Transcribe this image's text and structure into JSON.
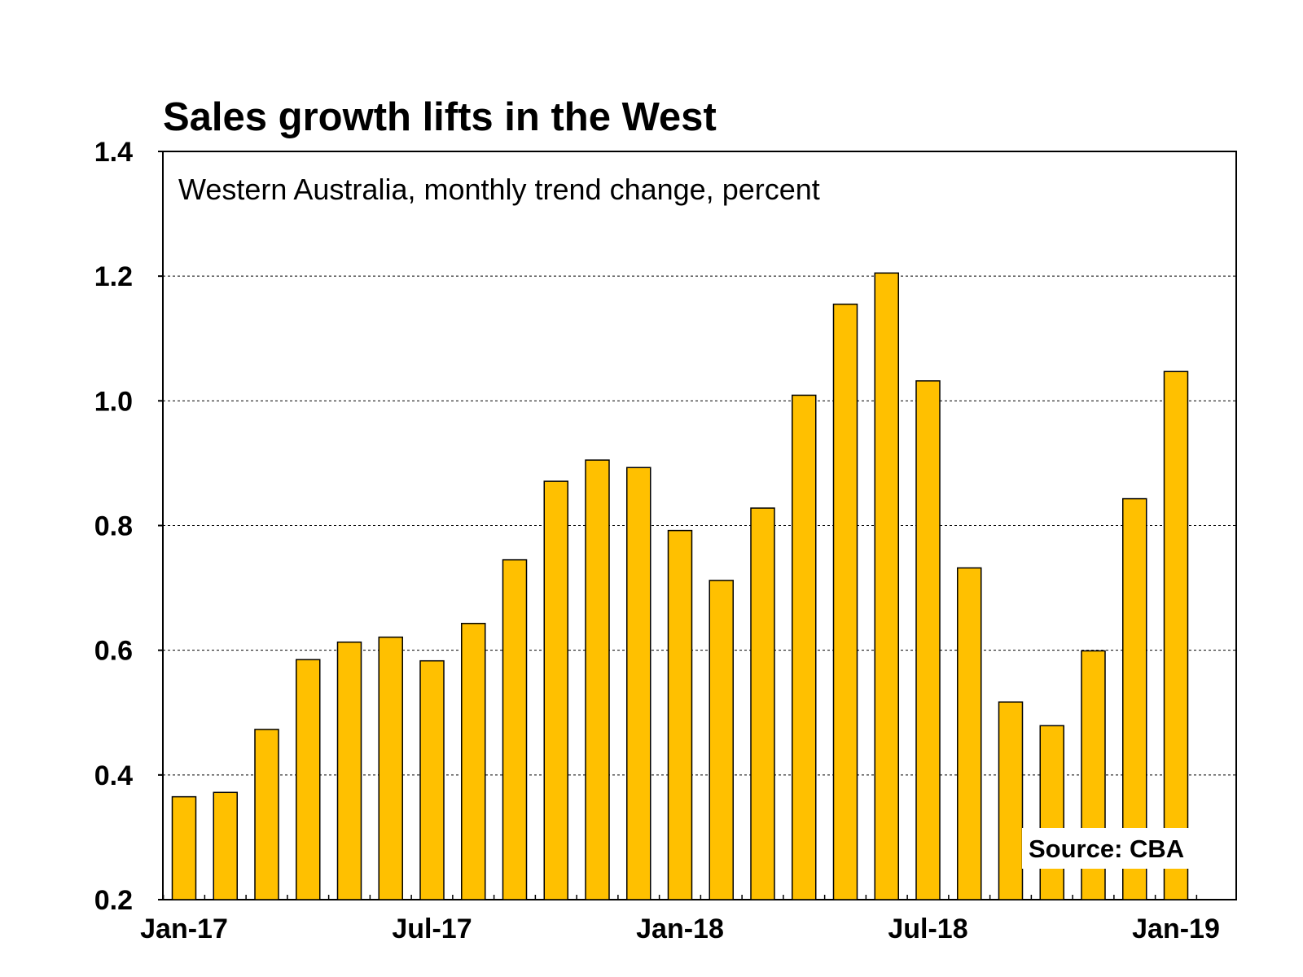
{
  "chart_data": {
    "type": "bar",
    "title": "Sales growth lifts in the West",
    "subtitle": "Western Australia, monthly trend change, percent",
    "source": "Source: CBA",
    "categories": [
      "Jan-17",
      "Feb-17",
      "Mar-17",
      "Apr-17",
      "May-17",
      "Jun-17",
      "Jul-17",
      "Aug-17",
      "Sep-17",
      "Oct-17",
      "Nov-17",
      "Dec-17",
      "Jan-18",
      "Feb-18",
      "Mar-18",
      "Apr-18",
      "May-18",
      "Jun-18",
      "Jul-18",
      "Aug-18",
      "Sep-18",
      "Oct-18",
      "Nov-18",
      "Dec-18",
      "Jan-19"
    ],
    "values": [
      0.365,
      0.372,
      0.473,
      0.585,
      0.613,
      0.621,
      0.583,
      0.643,
      0.745,
      0.871,
      0.905,
      0.893,
      0.792,
      0.712,
      0.828,
      1.009,
      1.155,
      1.205,
      1.032,
      0.732,
      0.517,
      0.479,
      0.599,
      0.843,
      1.047
    ],
    "x_tick_labels": [
      "Jan-17",
      "Jul-17",
      "Jan-18",
      "Jul-18",
      "Jan-19"
    ],
    "y_tick_labels": [
      "0.2",
      "0.4",
      "0.6",
      "0.8",
      "1.0",
      "1.2",
      "1.4"
    ],
    "ylim": [
      0.2,
      1.4
    ],
    "grid": true,
    "bar_color": "#FFC000",
    "bar_outline_color": "#000000"
  }
}
